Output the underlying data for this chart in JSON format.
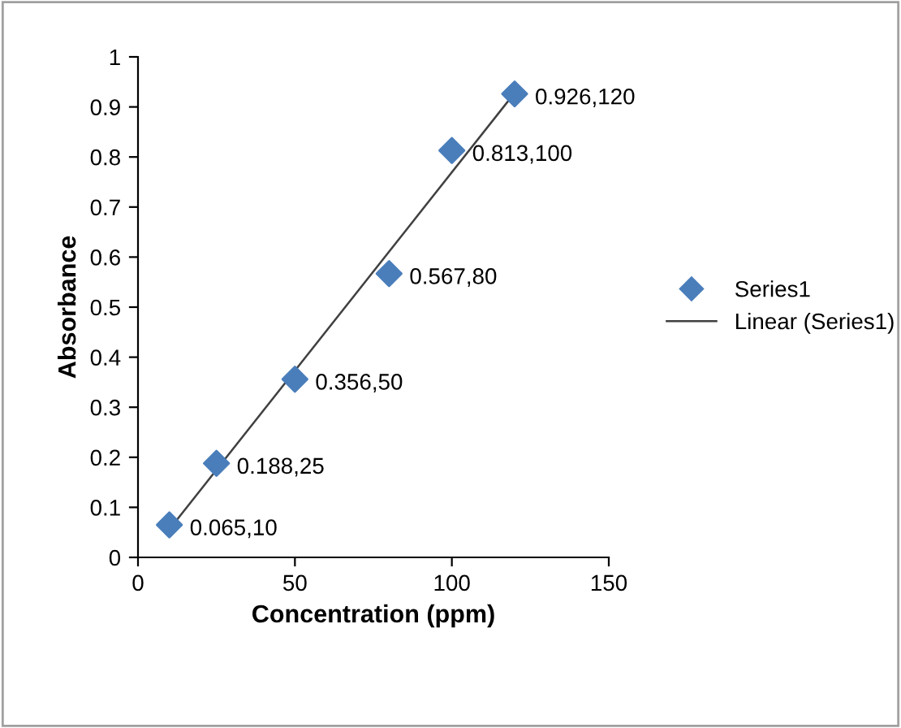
{
  "chart_data": {
    "type": "scatter",
    "xlabel": "Concentration (ppm)",
    "ylabel": "Absorbance",
    "xlim": [
      0,
      150
    ],
    "xticks": [
      0,
      50,
      100,
      150
    ],
    "ylim": [
      0,
      1
    ],
    "yticks": [
      0,
      0.1,
      0.2,
      0.3,
      0.4,
      0.5,
      0.6,
      0.7,
      0.8,
      0.9,
      1
    ],
    "grid": false,
    "legend": "right",
    "series": [
      {
        "name": "Series1",
        "marker": "diamond",
        "color": "#4a7ebb",
        "x": [
          10,
          25,
          50,
          80,
          100,
          120
        ],
        "values": [
          0.065,
          0.188,
          0.356,
          0.567,
          0.813,
          0.926
        ]
      },
      {
        "name": "Linear (Series1)",
        "type": "line",
        "color": "#404040",
        "line_style": "solid",
        "x": [
          10,
          120
        ],
        "values": [
          0.056,
          0.928
        ]
      }
    ],
    "annotations": [
      {
        "text": "0.065,10",
        "x": 10,
        "y": 0.065
      },
      {
        "text": "0.188,25",
        "x": 25,
        "y": 0.188
      },
      {
        "text": "0.356,50",
        "x": 50,
        "y": 0.356
      },
      {
        "text": "0.567,80",
        "x": 80,
        "y": 0.567
      },
      {
        "text": "0.813,100",
        "x": 100,
        "y": 0.813
      },
      {
        "text": "0.926,120",
        "x": 120,
        "y": 0.926
      }
    ]
  }
}
